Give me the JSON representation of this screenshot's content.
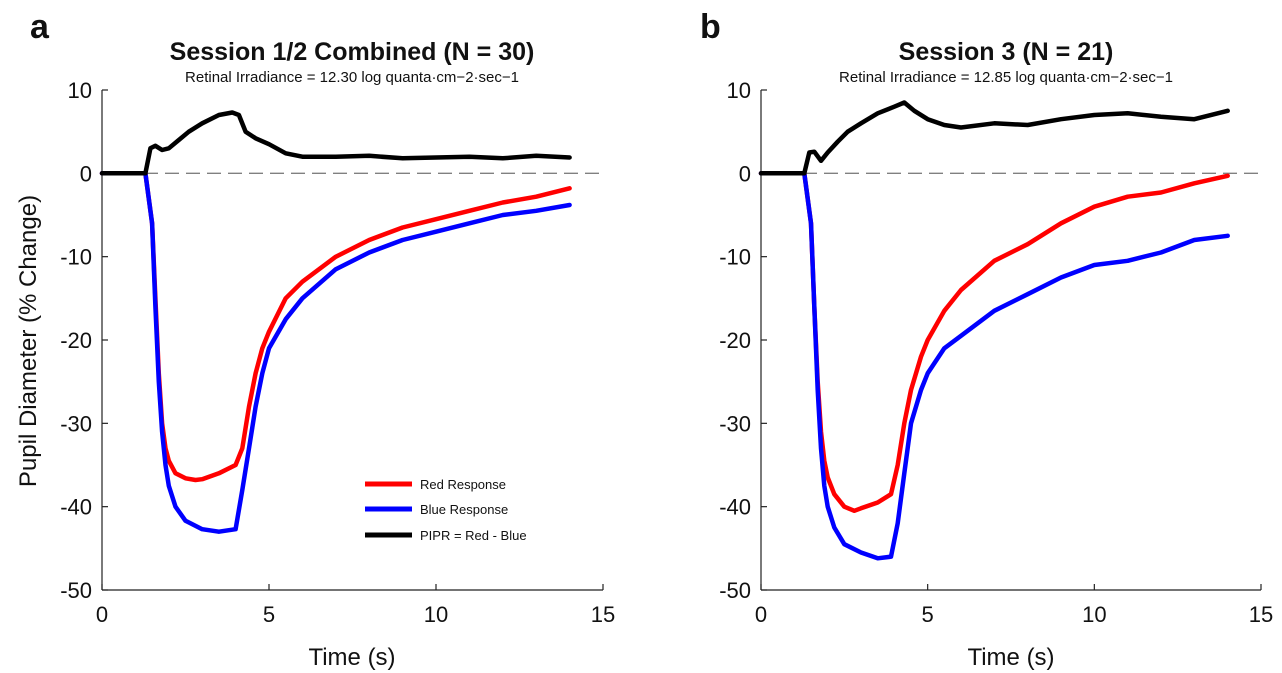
{
  "y_axis_label": "Pupil Diameter (% Change)",
  "legend": {
    "entries": [
      {
        "label": "Red Response",
        "color": "#ff0000"
      },
      {
        "label": "Blue Response",
        "color": "#0000ff"
      },
      {
        "label": "PIPR = Red - Blue",
        "color": "#000000"
      }
    ]
  },
  "chart_data": [
    {
      "panel": "a",
      "type": "line",
      "title": "Session 1/2 Combined (N = 30)",
      "subtitle": "Retinal Irradiance = 12.30 log quanta·cm−2·sec−1",
      "xlabel": "Time (s)",
      "ylabel": "Pupil Diameter (% Change)",
      "xlim": [
        0,
        15
      ],
      "ylim": [
        -50,
        10
      ],
      "xticks": [
        0,
        5,
        10,
        15
      ],
      "yticks": [
        10,
        0,
        -10,
        -20,
        -30,
        -40,
        -50
      ],
      "reference_line_y": 0,
      "grid": false,
      "legend_position": "bottom-right",
      "series": [
        {
          "name": "Red Response",
          "color": "#ff0000",
          "x": [
            0,
            1.3,
            1.5,
            1.6,
            1.7,
            1.8,
            1.9,
            2.0,
            2.2,
            2.5,
            2.8,
            3.0,
            3.5,
            4.0,
            4.2,
            4.4,
            4.6,
            4.8,
            5.0,
            5.5,
            6.0,
            7.0,
            8.0,
            9.0,
            10.0,
            11.0,
            12.0,
            13.0,
            14.0
          ],
          "y": [
            0,
            0,
            -6,
            -15,
            -24,
            -30,
            -33,
            -34.5,
            -36,
            -36.6,
            -36.8,
            -36.7,
            -36,
            -35,
            -33,
            -28,
            -24,
            -21,
            -19,
            -15,
            -13,
            -10,
            -8,
            -6.5,
            -5.5,
            -4.5,
            -3.5,
            -2.8,
            -1.8
          ]
        },
        {
          "name": "Blue Response",
          "color": "#0000ff",
          "x": [
            0,
            1.3,
            1.5,
            1.6,
            1.7,
            1.8,
            1.9,
            2.0,
            2.2,
            2.5,
            3.0,
            3.5,
            4.0,
            4.2,
            4.4,
            4.6,
            4.8,
            5.0,
            5.5,
            6.0,
            7.0,
            8.0,
            9.0,
            10.0,
            11.0,
            12.0,
            13.0,
            14.0
          ],
          "y": [
            0,
            0,
            -6,
            -16,
            -25,
            -31,
            -35,
            -37.5,
            -40,
            -41.7,
            -42.7,
            -43,
            -42.7,
            -38,
            -33,
            -28,
            -24,
            -21,
            -17.5,
            -15,
            -11.5,
            -9.5,
            -8,
            -7,
            -6,
            -5,
            -4.5,
            -3.8
          ]
        },
        {
          "name": "PIPR = Red - Blue",
          "color": "#000000",
          "x": [
            0,
            1.3,
            1.45,
            1.6,
            1.8,
            2.0,
            2.3,
            2.6,
            3.0,
            3.5,
            3.9,
            4.1,
            4.3,
            4.6,
            5.0,
            5.5,
            6.0,
            7.0,
            8.0,
            9.0,
            10.0,
            11.0,
            12.0,
            13.0,
            14.0
          ],
          "y": [
            0,
            0,
            3,
            3.3,
            2.8,
            3,
            4,
            5,
            6,
            7,
            7.3,
            7,
            5,
            4.2,
            3.5,
            2.4,
            2,
            2,
            2.1,
            1.8,
            1.9,
            2,
            1.8,
            2.1,
            1.9
          ]
        }
      ]
    },
    {
      "panel": "b",
      "type": "line",
      "title": "Session 3 (N = 21)",
      "subtitle": "Retinal Irradiance = 12.85 log quanta·cm−2·sec−1",
      "xlabel": "Time (s)",
      "ylabel": "",
      "xlim": [
        0,
        15
      ],
      "ylim": [
        -50,
        10
      ],
      "xticks": [
        0,
        5,
        10,
        15
      ],
      "yticks": [
        10,
        0,
        -10,
        -20,
        -30,
        -40,
        -50
      ],
      "reference_line_y": 0,
      "grid": false,
      "series": [
        {
          "name": "Red Response",
          "color": "#ff0000",
          "x": [
            0,
            1.3,
            1.5,
            1.6,
            1.7,
            1.8,
            1.9,
            2.0,
            2.2,
            2.5,
            2.8,
            3.0,
            3.5,
            3.9,
            4.1,
            4.3,
            4.5,
            4.8,
            5.0,
            5.5,
            6.0,
            7.0,
            8.0,
            9.0,
            10.0,
            11.0,
            12.0,
            13.0,
            14.0
          ],
          "y": [
            0,
            0,
            -6,
            -16,
            -25,
            -31,
            -34.5,
            -36.5,
            -38.5,
            -40,
            -40.5,
            -40.2,
            -39.5,
            -38.5,
            -35,
            -30,
            -26,
            -22,
            -20,
            -16.5,
            -14,
            -10.5,
            -8.5,
            -6,
            -4,
            -2.8,
            -2.3,
            -1.2,
            -0.3
          ]
        },
        {
          "name": "Blue Response",
          "color": "#0000ff",
          "x": [
            0,
            1.3,
            1.5,
            1.6,
            1.7,
            1.8,
            1.9,
            2.0,
            2.2,
            2.5,
            3.0,
            3.5,
            3.9,
            4.1,
            4.3,
            4.5,
            4.8,
            5.0,
            5.5,
            6.0,
            7.0,
            8.0,
            9.0,
            10.0,
            11.0,
            12.0,
            13.0,
            14.0
          ],
          "y": [
            0,
            0,
            -6,
            -16,
            -26,
            -33,
            -37.5,
            -40,
            -42.5,
            -44.5,
            -45.5,
            -46.2,
            -46,
            -42,
            -36,
            -30,
            -26,
            -24,
            -21,
            -19.5,
            -16.5,
            -14.5,
            -12.5,
            -11,
            -10.5,
            -9.5,
            -8,
            -7.5
          ]
        },
        {
          "name": "PIPR = Red - Blue",
          "color": "#000000",
          "x": [
            0,
            1.3,
            1.45,
            1.6,
            1.8,
            2.0,
            2.3,
            2.6,
            3.0,
            3.5,
            4.0,
            4.3,
            4.6,
            5.0,
            5.5,
            6.0,
            7.0,
            8.0,
            9.0,
            10.0,
            11.0,
            12.0,
            13.0,
            14.0
          ],
          "y": [
            0,
            0,
            2.5,
            2.6,
            1.5,
            2.5,
            3.8,
            5,
            6,
            7.2,
            8,
            8.5,
            7.5,
            6.5,
            5.8,
            5.5,
            6,
            5.8,
            6.5,
            7,
            7.2,
            6.8,
            6.5,
            7.5
          ]
        }
      ]
    }
  ]
}
